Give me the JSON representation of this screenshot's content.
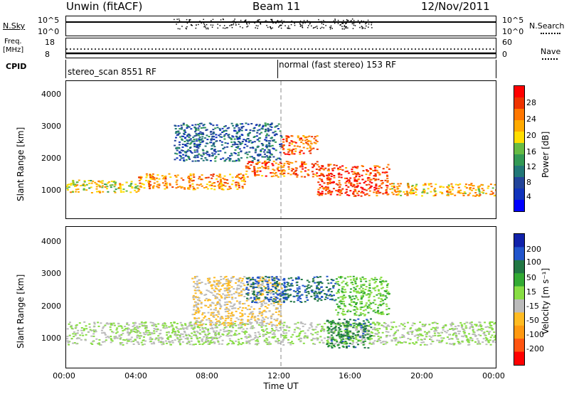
{
  "header": {
    "radar": "Unwin (fitACF)",
    "beam": "Beam 11",
    "date": "12/Nov/2011"
  },
  "aux": {
    "nsky_label": "N.Sky",
    "nsky_ticks": [
      "10^5",
      "10^0"
    ],
    "nsearch_label": "N.Search",
    "nsearch_ticks": [
      "10^5",
      "10^0"
    ],
    "freq_label_1": "Freq.",
    "freq_label_2": "[MHz]",
    "freq_ticks": [
      "18",
      "8"
    ],
    "nave_label": "Nave",
    "nave_ticks": [
      "60",
      "0"
    ],
    "cpid_label": "CPID",
    "cpid_left": "stereo_scan 8551 RF",
    "cpid_right": "normal (fast stereo) 153 RF"
  },
  "power_panel": {
    "ylabel": "Slant Range [km]",
    "yticks": [
      "4000",
      "3000",
      "2000",
      "1000"
    ],
    "cb_label": "Power [dB]",
    "cb_ticks": [
      "28",
      "24",
      "20",
      "16",
      "12",
      "8",
      "4"
    ],
    "cb_colors": [
      "#ff0000",
      "#ee3300",
      "#ff7700",
      "#ffaa00",
      "#ffdd00",
      "#66bb44",
      "#339955",
      "#227777",
      "#224499",
      "#1133bb",
      "#0000ff"
    ]
  },
  "velocity_panel": {
    "ylabel": "Slant Range [km]",
    "yticks": [
      "4000",
      "3000",
      "2000",
      "1000"
    ],
    "cb_label": "Velocity [m s⁻¹]",
    "cb_ticks": [
      "200",
      "100",
      "50",
      "15",
      "-15",
      "-50",
      "-100",
      "-200"
    ],
    "cb_colors": [
      "#1122aa",
      "#2255cc",
      "#227744",
      "#33aa33",
      "#88dd44",
      "#bbbbbb",
      "#ffbb22",
      "#ff9911",
      "#ff5511",
      "#ff0000"
    ]
  },
  "xaxis": {
    "ticks": [
      "00:00",
      "04:00",
      "08:00",
      "12:00",
      "16:00",
      "20:00",
      "00:00"
    ],
    "label": "Time UT"
  },
  "chart_data": [
    {
      "type": "heatmap",
      "title": "Power [dB]",
      "xlabel": "Time UT",
      "ylabel": "Slant Range [km]",
      "ylim": [
        180,
        4500
      ],
      "xlim_hours": [
        0,
        24
      ],
      "clim": [
        0,
        30
      ],
      "bands": [
        {
          "hours": [
            0,
            4
          ],
          "range_km": [
            1000,
            1400
          ],
          "power_db": 18
        },
        {
          "hours": [
            4,
            10
          ],
          "range_km": [
            1100,
            1600
          ],
          "power_db": 22
        },
        {
          "hours": [
            10,
            14
          ],
          "range_km": [
            1500,
            2000
          ],
          "power_db": 24
        },
        {
          "hours": [
            12,
            14
          ],
          "range_km": [
            2200,
            2800
          ],
          "power_db": 24
        },
        {
          "hours": [
            14,
            18
          ],
          "range_km": [
            900,
            1900
          ],
          "power_db": 26
        },
        {
          "hours": [
            18,
            24
          ],
          "range_km": [
            900,
            1300
          ],
          "power_db": 20
        },
        {
          "hours": [
            6,
            12
          ],
          "range_km": [
            2000,
            3200
          ],
          "power_db": 8
        }
      ]
    },
    {
      "type": "heatmap",
      "title": "Velocity [m s⁻¹]",
      "xlabel": "Time UT",
      "ylabel": "Slant Range [km]",
      "ylim": [
        180,
        4500
      ],
      "xlim_hours": [
        0,
        24
      ],
      "clim": [
        -250,
        250
      ],
      "bands": [
        {
          "hours": [
            0,
            24
          ],
          "range_km": [
            900,
            1600
          ],
          "velocity_ms": 0
        },
        {
          "hours": [
            7,
            12
          ],
          "range_km": [
            1500,
            3000
          ],
          "velocity_ms": -50
        },
        {
          "hours": [
            10,
            15
          ],
          "range_km": [
            2200,
            3000
          ],
          "velocity_ms": 150
        },
        {
          "hours": [
            14.5,
            17
          ],
          "range_km": [
            800,
            1700
          ],
          "velocity_ms": 120
        },
        {
          "hours": [
            15,
            18
          ],
          "range_km": [
            1800,
            3000
          ],
          "velocity_ms": 40
        }
      ]
    }
  ]
}
